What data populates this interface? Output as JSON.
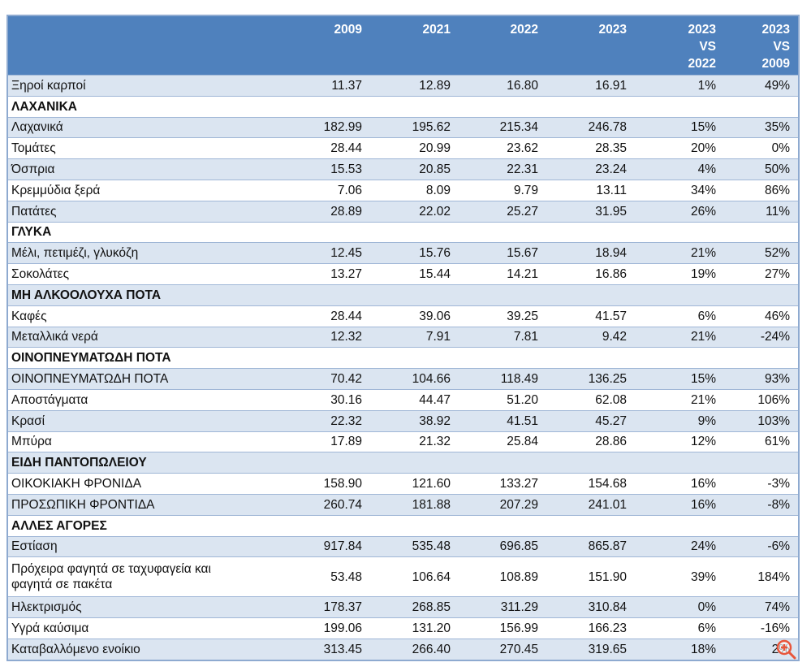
{
  "headers": [
    "",
    "2009",
    "2021",
    "2022",
    "2023",
    "2023 VS 2022",
    "2023 VS 2009"
  ],
  "rows": [
    {
      "label": "Ξηροί καρποί",
      "values": [
        "11.37",
        "12.89",
        "16.80",
        "16.91",
        "1%",
        "49%"
      ]
    },
    {
      "label": "ΛΑΧΑΝΙΚΑ",
      "section": true,
      "values": [
        "",
        "",
        "",
        "",
        "",
        ""
      ]
    },
    {
      "label": "Λαχανικά",
      "values": [
        "182.99",
        "195.62",
        "215.34",
        "246.78",
        "15%",
        "35%"
      ]
    },
    {
      "label": "Τομάτες",
      "values": [
        "28.44",
        "20.99",
        "23.62",
        "28.35",
        "20%",
        "0%"
      ]
    },
    {
      "label": "Όσπρια",
      "values": [
        "15.53",
        "20.85",
        "22.31",
        "23.24",
        "4%",
        "50%"
      ]
    },
    {
      "label": "Κρεμμύδια ξερά",
      "values": [
        "7.06",
        "8.09",
        "9.79",
        "13.11",
        "34%",
        "86%"
      ]
    },
    {
      "label": "Πατάτες",
      "values": [
        "28.89",
        "22.02",
        "25.27",
        "31.95",
        "26%",
        "11%"
      ]
    },
    {
      "label": "ΓΛΥΚΑ",
      "section": true,
      "values": [
        "",
        "",
        "",
        "",
        "",
        ""
      ]
    },
    {
      "label": "Μέλι, πετιμέζι, γλυκόζη",
      "values": [
        "12.45",
        "15.76",
        "15.67",
        "18.94",
        "21%",
        "52%"
      ]
    },
    {
      "label": "Σοκολάτες",
      "values": [
        "13.27",
        "15.44",
        "14.21",
        "16.86",
        "19%",
        "27%"
      ]
    },
    {
      "label": "ΜΗ ΑΛΚΟΟΛΟΥΧΑ ΠΟΤΑ",
      "section": true,
      "values": [
        "",
        "",
        "",
        "",
        "",
        ""
      ]
    },
    {
      "label": "Καφές",
      "values": [
        "28.44",
        "39.06",
        "39.25",
        "41.57",
        "6%",
        "46%"
      ]
    },
    {
      "label": "Μεταλλικά νερά",
      "values": [
        "12.32",
        "7.91",
        "7.81",
        "9.42",
        "21%",
        "-24%"
      ]
    },
    {
      "label": "ΟΙΝΟΠΝΕΥΜΑΤΩΔΗ ΠΟΤΑ",
      "section": true,
      "values": [
        "",
        "",
        "",
        "",
        "",
        ""
      ]
    },
    {
      "label": "ΟΙΝΟΠΝΕΥΜΑΤΩΔΗ ΠΟΤΑ",
      "values": [
        "70.42",
        "104.66",
        "118.49",
        "136.25",
        "15%",
        "93%"
      ]
    },
    {
      "label": "Αποστάγματα",
      "values": [
        "30.16",
        "44.47",
        "51.20",
        "62.08",
        "21%",
        "106%"
      ]
    },
    {
      "label": "Κρασί",
      "values": [
        "22.32",
        "38.92",
        "41.51",
        "45.27",
        "9%",
        "103%"
      ]
    },
    {
      "label": "Μπύρα",
      "values": [
        "17.89",
        "21.32",
        "25.84",
        "28.86",
        "12%",
        "61%"
      ]
    },
    {
      "label": "ΕΙΔΗ ΠΑΝΤΟΠΩΛΕΙΟΥ",
      "section": true,
      "values": [
        "",
        "",
        "",
        "",
        "",
        ""
      ]
    },
    {
      "label": "ΟΙΚΟΚΙΑΚΗ ΦΡΟΝΙΔΑ",
      "values": [
        "158.90",
        "121.60",
        "133.27",
        "154.68",
        "16%",
        "-3%"
      ]
    },
    {
      "label": "ΠΡΟΣΩΠΙΚΗ ΦΡΟΝΤΙΔΑ",
      "values": [
        "260.74",
        "181.88",
        "207.29",
        "241.01",
        "16%",
        "-8%"
      ]
    },
    {
      "label": "ΑΛΛΕΣ ΑΓΟΡΕΣ",
      "section": true,
      "values": [
        "",
        "",
        "",
        "",
        "",
        ""
      ]
    },
    {
      "label": "Εστίαση",
      "values": [
        "917.84",
        "535.48",
        "696.85",
        "865.87",
        "24%",
        "-6%"
      ]
    },
    {
      "label": "Πρόχειρα φαγητά σε ταχυφαγεία και φαγητά σε πακέτα",
      "double": true,
      "values": [
        "53.48",
        "106.64",
        "108.89",
        "151.90",
        "39%",
        "184%"
      ]
    },
    {
      "label": "Ηλεκτρισμός",
      "values": [
        "178.37",
        "268.85",
        "311.29",
        "310.84",
        "0%",
        "74%"
      ]
    },
    {
      "label": "Υγρά καύσιμα",
      "values": [
        "199.06",
        "131.20",
        "156.99",
        "166.23",
        "6%",
        "-16%"
      ]
    },
    {
      "label": "Καταβαλλόμενο ενοίκιο",
      "values": [
        "313.45",
        "266.40",
        "270.45",
        "319.65",
        "18%",
        "2%"
      ]
    }
  ],
  "colors": {
    "header": "#4f81bd",
    "stripe": "#dbe5f1",
    "zoom_icon": "#e8553a"
  },
  "icons": {
    "overlay": "zoom-in-icon"
  }
}
